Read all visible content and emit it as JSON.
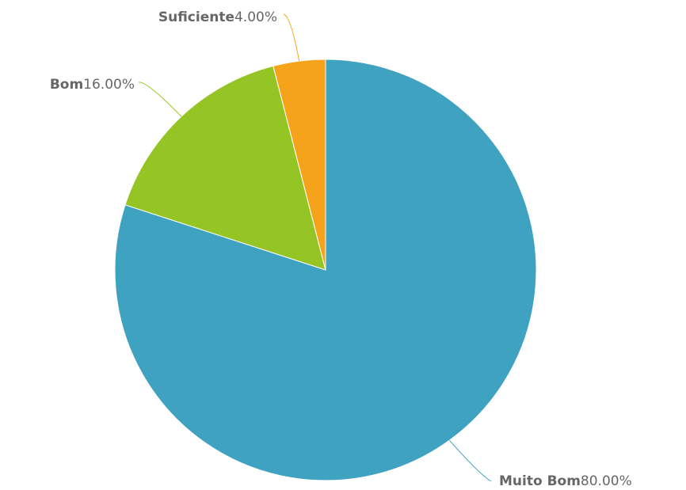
{
  "chart_data": {
    "type": "pie",
    "categories": [
      "Muito Bom",
      "Bom",
      "Suficiente"
    ],
    "values": [
      80,
      16,
      4
    ],
    "value_labels": [
      "80.00%",
      "16.00%",
      "4.00%"
    ],
    "colors": [
      "#3fa2c1",
      "#95c525",
      "#f5a31a"
    ]
  }
}
